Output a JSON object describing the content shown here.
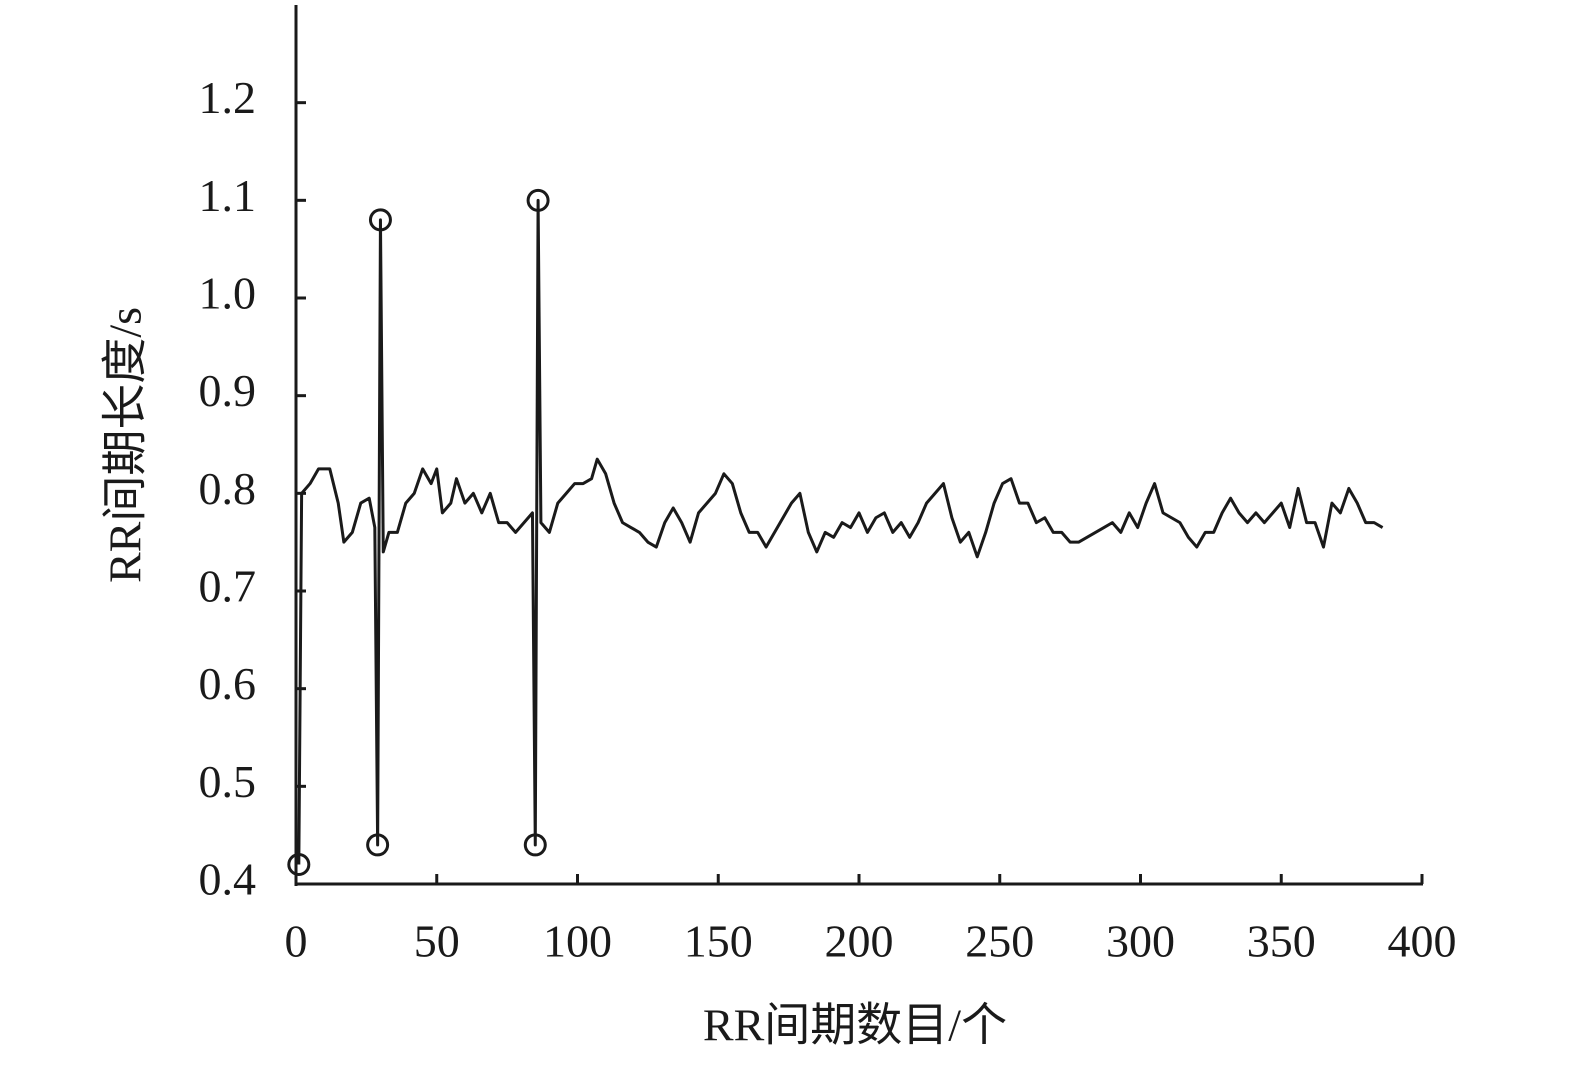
{
  "chart_data": {
    "type": "line",
    "xlabel": "RR间期数目/个",
    "ylabel": "RR间期长度/s",
    "xlim": [
      0,
      400
    ],
    "xticks": [
      0,
      50,
      100,
      150,
      200,
      250,
      300,
      350,
      400
    ],
    "ylim": [
      0.4,
      1.3
    ],
    "yticks": [
      0.4,
      0.5,
      0.6,
      0.7,
      0.8,
      0.9,
      {
        "value": 1,
        "label": "1.0"
      },
      1.1,
      1.2
    ],
    "grid": false,
    "series": [
      {
        "color": "#1a1a1a",
        "line": true,
        "x": [
          1,
          2,
          5,
          8,
          12,
          15,
          17,
          20,
          23,
          26,
          28,
          29,
          30,
          31,
          33,
          36,
          39,
          42,
          45,
          48,
          50,
          52,
          55,
          57,
          60,
          63,
          66,
          69,
          72,
          75,
          78,
          81,
          84,
          85,
          86,
          87,
          90,
          93,
          96,
          99,
          102,
          105,
          107,
          110,
          113,
          116,
          119,
          122,
          125,
          128,
          131,
          134,
          137,
          140,
          143,
          146,
          149,
          152,
          155,
          158,
          161,
          164,
          167,
          170,
          173,
          176,
          179,
          182,
          185,
          188,
          191,
          194,
          197,
          200,
          203,
          206,
          209,
          212,
          215,
          218,
          221,
          224,
          227,
          230,
          233,
          236,
          239,
          242,
          245,
          248,
          251,
          254,
          257,
          260,
          263,
          266,
          269,
          272,
          275,
          278,
          281,
          284,
          287,
          290,
          293,
          296,
          299,
          302,
          305,
          308,
          311,
          314,
          317,
          320,
          323,
          326,
          329,
          332,
          335,
          338,
          341,
          344,
          347,
          350,
          353,
          356,
          359,
          362,
          365,
          368,
          371,
          374,
          377,
          380,
          383,
          386
        ],
        "values": [
          0.42,
          0.8,
          0.81,
          0.825,
          0.825,
          0.79,
          0.75,
          0.76,
          0.79,
          0.795,
          0.765,
          0.44,
          1.08,
          0.74,
          0.76,
          0.76,
          0.79,
          0.8,
          0.825,
          0.81,
          0.825,
          0.78,
          0.79,
          0.815,
          0.79,
          0.8,
          0.78,
          0.8,
          0.77,
          0.77,
          0.76,
          0.77,
          0.78,
          0.44,
          1.1,
          0.77,
          0.76,
          0.79,
          0.8,
          0.81,
          0.81,
          0.815,
          0.835,
          0.82,
          0.79,
          0.77,
          0.765,
          0.76,
          0.75,
          0.745,
          0.77,
          0.785,
          0.77,
          0.75,
          0.78,
          0.79,
          0.8,
          0.82,
          0.81,
          0.78,
          0.76,
          0.76,
          0.745,
          0.76,
          0.775,
          0.79,
          0.8,
          0.76,
          0.74,
          0.76,
          0.755,
          0.77,
          0.765,
          0.78,
          0.76,
          0.775,
          0.78,
          0.76,
          0.77,
          0.755,
          0.77,
          0.79,
          0.8,
          0.81,
          0.775,
          0.75,
          0.76,
          0.735,
          0.76,
          0.79,
          0.81,
          0.815,
          0.79,
          0.79,
          0.77,
          0.775,
          0.76,
          0.76,
          0.75,
          0.75,
          0.755,
          0.76,
          0.765,
          0.77,
          0.76,
          0.78,
          0.765,
          0.79,
          0.81,
          0.78,
          0.775,
          0.77,
          0.755,
          0.745,
          0.76,
          0.76,
          0.78,
          0.795,
          0.78,
          0.77,
          0.78,
          0.77,
          0.78,
          0.79,
          0.765,
          0.805,
          0.77,
          0.77,
          0.745,
          0.79,
          0.78,
          0.805,
          0.79,
          0.77,
          0.77,
          0.765
        ]
      },
      {
        "color": "#1a1a1a",
        "line": false,
        "marker": "circle",
        "x": [
          1,
          29,
          30,
          85,
          86
        ],
        "values": [
          0.42,
          0.44,
          1.08,
          0.44,
          1.1
        ]
      }
    ]
  }
}
